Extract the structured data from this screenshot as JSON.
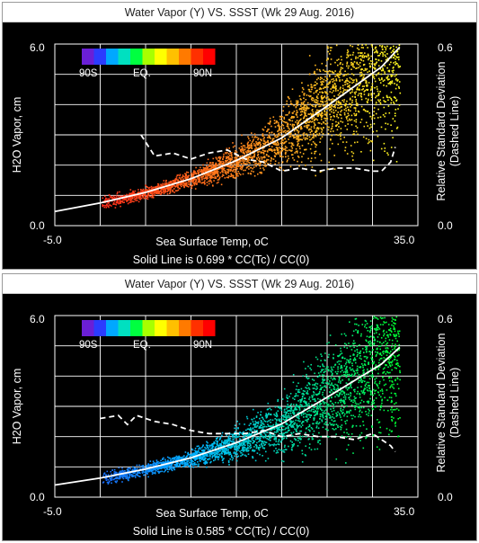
{
  "chart_data": [
    {
      "type": "scatter",
      "title": "Water Vapor (Y) VS. SSST (Wk 29 Aug. 2016)",
      "xlabel": "Sea Surface Temp, oC",
      "ylabel": "H2O Vapor, cm",
      "y2label_line1": "Relative Standard Deviation",
      "y2label_line2": "(Dashed Line)",
      "caption": "Solid Line is 0.699 * CC(Tc) / CC(0)",
      "xlim": [
        -5.0,
        35.0
      ],
      "ylim": [
        0.0,
        6.0
      ],
      "y2lim": [
        0.0,
        0.6
      ],
      "x_tick_labels": [
        "-5.0",
        "35.0"
      ],
      "y_tick_labels": [
        "0.0",
        "6.0"
      ],
      "y2_tick_labels": [
        "0.0",
        "0.6"
      ],
      "grid": true,
      "color_legend": {
        "labels": [
          "90S",
          "EQ.",
          "90N"
        ],
        "colors": [
          "#6a1fd6",
          "#2b3cff",
          "#00a8ff",
          "#00e0c0",
          "#00ff40",
          "#a8ff00",
          "#ffff00",
          "#ffc000",
          "#ff7a00",
          "#ff3000",
          "#ff0000"
        ]
      },
      "point_color_stops": [
        "#ff2a1a",
        "#ff6a1a",
        "#ffb020",
        "#ffff20"
      ],
      "series": [
        {
          "style": "solid",
          "factor": 0.699,
          "x": [
            -5,
            0,
            5,
            10,
            15,
            20,
            25,
            28,
            31,
            33
          ],
          "y": [
            0.47,
            0.75,
            1.1,
            1.55,
            2.15,
            2.9,
            3.95,
            4.6,
            5.25,
            5.9
          ]
        },
        {
          "style": "dashed",
          "x": [
            4.5,
            6,
            8,
            10,
            12,
            14,
            16,
            18,
            20,
            22,
            24,
            26,
            28,
            30,
            31,
            32,
            32.5
          ],
          "y": [
            0.3,
            0.23,
            0.24,
            0.22,
            0.24,
            0.25,
            0.22,
            0.21,
            0.18,
            0.19,
            0.18,
            0.19,
            0.19,
            0.18,
            0.18,
            0.21,
            0.26
          ]
        }
      ]
    },
    {
      "type": "scatter",
      "title": "Water Vapor (Y) VS. SSST (Wk 29 Aug. 2016)",
      "xlabel": "Sea Surface Temp, oC",
      "ylabel": "H2O Vapor, cm",
      "y2label_line1": "Relative Standard Deviation",
      "y2label_line2": "(Dashed Line)",
      "caption": "Solid Line is 0.585 * CC(Tc) / CC(0)",
      "xlim": [
        -5.0,
        35.0
      ],
      "ylim": [
        0.0,
        6.0
      ],
      "y2lim": [
        0.0,
        0.6
      ],
      "x_tick_labels": [
        "-5.0",
        "35.0"
      ],
      "y_tick_labels": [
        "0.0",
        "6.0"
      ],
      "y2_tick_labels": [
        "0.0",
        "0.6"
      ],
      "grid": true,
      "color_legend": {
        "labels": [
          "90S",
          "EQ.",
          "90N"
        ],
        "colors": [
          "#6a1fd6",
          "#2b3cff",
          "#00a8ff",
          "#00e0c0",
          "#00ff40",
          "#a8ff00",
          "#ffff00",
          "#ffc000",
          "#ff7a00",
          "#ff3000",
          "#ff0000"
        ]
      },
      "point_color_stops": [
        "#1a6cff",
        "#00b8ff",
        "#00e0a0",
        "#00ff30"
      ],
      "series": [
        {
          "style": "solid",
          "factor": 0.585,
          "x": [
            -5,
            0,
            5,
            10,
            15,
            20,
            25,
            28,
            31,
            33
          ],
          "y": [
            0.4,
            0.63,
            0.93,
            1.3,
            1.8,
            2.42,
            3.3,
            3.85,
            4.4,
            4.95
          ]
        },
        {
          "style": "dashed",
          "x": [
            0,
            2,
            3,
            4,
            6,
            8,
            10,
            12,
            14,
            16,
            18,
            20,
            22,
            24,
            26,
            28,
            30,
            31,
            32,
            32.5
          ],
          "y": [
            0.26,
            0.27,
            0.24,
            0.27,
            0.25,
            0.24,
            0.22,
            0.21,
            0.21,
            0.21,
            0.22,
            0.2,
            0.21,
            0.2,
            0.2,
            0.19,
            0.21,
            0.19,
            0.17,
            0.15
          ]
        }
      ]
    }
  ]
}
